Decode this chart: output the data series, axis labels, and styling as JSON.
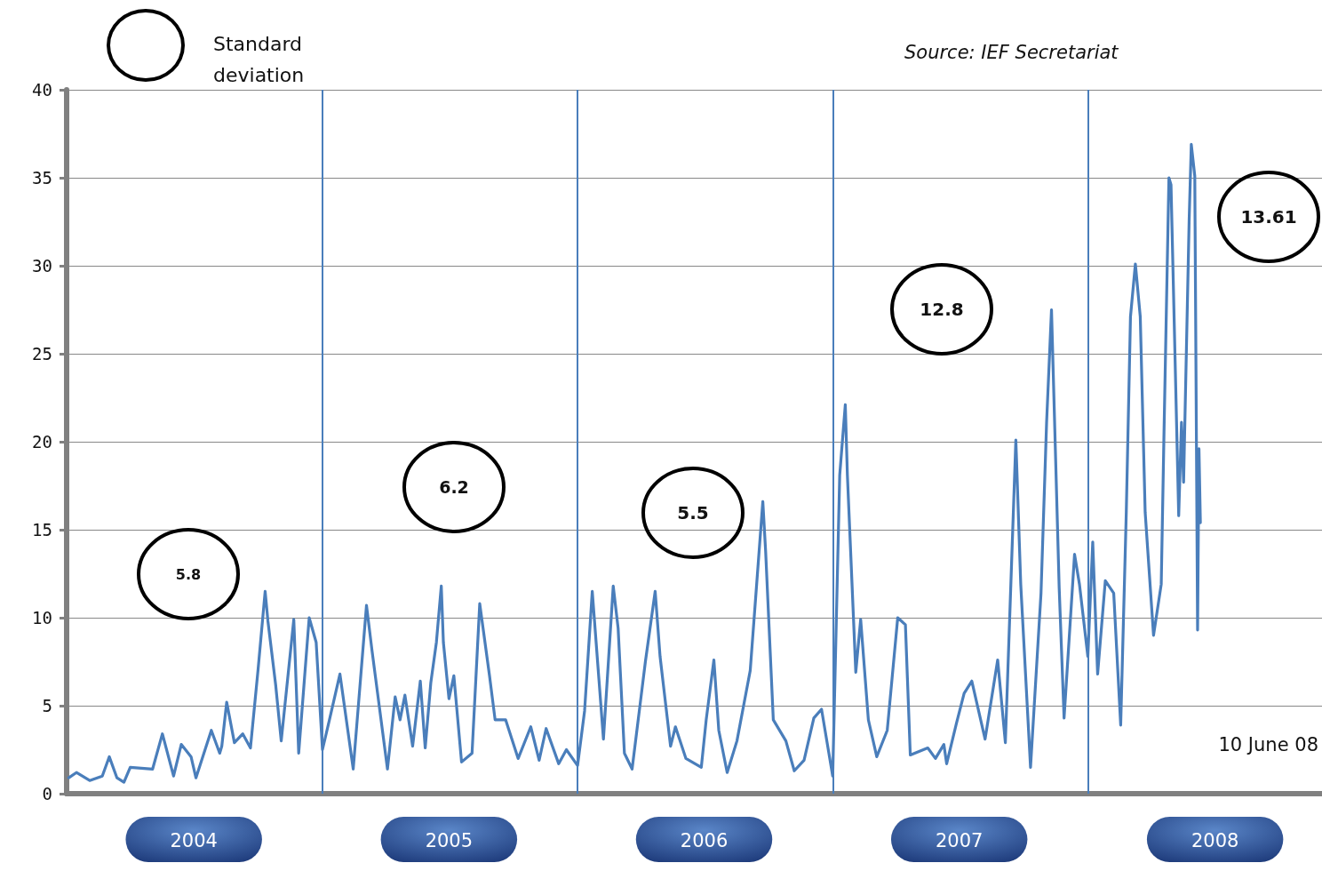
{
  "chart_data": {
    "type": "line",
    "x": [
      "2004-01-04",
      "2004-01-15",
      "2004-02-03",
      "2004-02-21",
      "2004-03-02",
      "2004-03-13",
      "2004-03-23",
      "2004-04-01",
      "2004-05-03",
      "2004-05-17",
      "2004-06-02",
      "2004-06-13",
      "2004-06-27",
      "2004-07-04",
      "2004-07-26",
      "2004-08-07",
      "2004-08-10",
      "2004-08-17",
      "2004-08-28",
      "2004-09-09",
      "2004-09-20",
      "2004-10-01",
      "2004-10-11",
      "2004-10-15",
      "2004-10-26",
      "2004-11-03",
      "2004-11-21",
      "2004-11-28",
      "2004-12-13",
      "2004-12-23",
      "2005-01-01",
      "2005-01-11",
      "2005-01-26",
      "2005-02-14",
      "2005-03-05",
      "2005-03-13",
      "2005-04-04",
      "2005-04-15",
      "2005-04-22",
      "2005-04-29",
      "2005-05-10",
      "2005-05-21",
      "2005-05-28",
      "2005-06-05",
      "2005-06-13",
      "2005-06-20",
      "2005-06-23",
      "2005-07-01",
      "2005-07-08",
      "2005-07-19",
      "2005-08-03",
      "2005-08-14",
      "2005-08-28",
      "2005-09-05",
      "2005-09-20",
      "2005-10-08",
      "2005-10-26",
      "2005-11-07",
      "2005-11-17",
      "2005-12-05",
      "2005-12-16",
      "2006-01-01",
      "2006-01-11",
      "2006-01-22",
      "2006-02-07",
      "2006-02-21",
      "2006-02-28",
      "2006-03-09",
      "2006-03-20",
      "2006-04-08",
      "2006-04-22",
      "2006-04-29",
      "2006-05-14",
      "2006-05-21",
      "2006-06-05",
      "2006-06-27",
      "2006-07-04",
      "2006-07-15",
      "2006-07-22",
      "2006-08-03",
      "2006-08-17",
      "2006-09-05",
      "2006-09-23",
      "2006-09-27",
      "2006-10-08",
      "2006-10-26",
      "2006-11-07",
      "2006-11-21",
      "2006-12-05",
      "2006-12-16",
      "2007-01-01",
      "2007-01-11",
      "2007-01-19",
      "2007-01-22",
      "2007-02-03",
      "2007-02-10",
      "2007-02-21",
      "2007-03-05",
      "2007-03-20",
      "2007-04-04",
      "2007-04-15",
      "2007-04-22",
      "2007-05-17",
      "2007-05-28",
      "2007-06-09",
      "2007-06-13",
      "2007-06-27",
      "2007-07-08",
      "2007-07-19",
      "2007-08-07",
      "2007-08-25",
      "2007-09-05",
      "2007-09-20",
      "2007-09-27",
      "2007-10-11",
      "2007-10-26",
      "2007-11-03",
      "2007-11-10",
      "2007-11-21",
      "2007-11-28",
      "2007-12-13",
      "2007-12-20",
      "2008-01-01",
      "2008-01-08",
      "2008-01-15",
      "2008-01-26",
      "2008-02-07",
      "2008-02-17",
      "2008-02-25",
      "2008-03-02",
      "2008-03-09",
      "2008-03-16",
      "2008-03-23",
      "2008-04-04",
      "2008-04-15",
      "2008-04-19",
      "2008-04-26",
      "2008-04-29",
      "2008-05-10",
      "2008-05-14",
      "2008-05-17",
      "2008-05-25",
      "2008-05-28",
      "2008-06-02",
      "2008-06-06",
      "2008-06-08",
      "2008-06-10"
    ],
    "series": [
      {
        "color": "#4a7ebb",
        "values": [
          0.9,
          1.2,
          0.75,
          1.0,
          2.1,
          0.9,
          0.65,
          1.5,
          1.4,
          3.4,
          1.0,
          2.8,
          2.1,
          0.9,
          3.6,
          2.3,
          2.7,
          5.2,
          2.9,
          3.4,
          2.6,
          7.1,
          11.5,
          9.8,
          6.2,
          3.0,
          9.9,
          2.3,
          10.0,
          8.6,
          2.5,
          4.2,
          6.8,
          1.4,
          10.7,
          8.1,
          1.4,
          5.5,
          4.2,
          5.6,
          2.7,
          6.4,
          2.6,
          6.3,
          8.6,
          11.8,
          8.6,
          5.4,
          6.7,
          1.8,
          2.3,
          10.8,
          6.7,
          4.2,
          4.2,
          2.0,
          3.8,
          1.9,
          3.7,
          1.7,
          2.5,
          1.6,
          4.7,
          11.5,
          3.1,
          11.8,
          9.4,
          2.3,
          1.4,
          7.5,
          11.5,
          7.8,
          2.7,
          3.8,
          2.0,
          1.5,
          4.2,
          7.6,
          3.6,
          1.2,
          3.0,
          7.0,
          16.6,
          13.8,
          4.2,
          3.0,
          1.3,
          1.9,
          4.3,
          4.8,
          1.0,
          18.1,
          22.1,
          18.1,
          6.9,
          9.9,
          4.2,
          2.1,
          3.6,
          10.0,
          9.6,
          2.2,
          2.6,
          2.0,
          2.8,
          1.7,
          4.0,
          5.7,
          6.4,
          3.1,
          7.6,
          2.9,
          20.1,
          11.9,
          1.5,
          11.4,
          21.1,
          27.5,
          11.7,
          4.3,
          13.6,
          11.9,
          7.8,
          14.3,
          6.8,
          12.1,
          11.4,
          3.9,
          16.0,
          27.1,
          30.1,
          27.1,
          16.0,
          9.0,
          11.9,
          20.6,
          35.0,
          34.6,
          15.8,
          21.1,
          17.7,
          32.7,
          36.9,
          35.1,
          9.3,
          19.6,
          15.4
        ]
      }
    ],
    "xlim": [
      "2004-01-01",
      "2008-12-01"
    ],
    "xticks": [
      {
        "value": "2004-07-01",
        "label": "2004"
      },
      {
        "value": "2005-07-01",
        "label": "2005"
      },
      {
        "value": "2006-07-01",
        "label": "2006"
      },
      {
        "value": "2007-07-01",
        "label": "2007"
      },
      {
        "value": "2008-07-01",
        "label": "2008"
      }
    ],
    "ylim": [
      0,
      40
    ],
    "yticks": [
      0,
      5,
      10,
      15,
      20,
      25,
      30,
      35,
      40
    ],
    "grid": "y",
    "marker": "none",
    "line_style": "solid",
    "ref_lines": [
      {
        "axis": "x",
        "value": "2005-01-01",
        "color": "#4a7ebb"
      },
      {
        "axis": "x",
        "value": "2006-01-01",
        "color": "#4a7ebb"
      },
      {
        "axis": "x",
        "value": "2007-01-01",
        "color": "#4a7ebb"
      },
      {
        "axis": "x",
        "value": "2008-01-01",
        "color": "#4a7ebb"
      }
    ],
    "annotations": [
      "Standard deviation",
      "Source: IEF Secretariat",
      "10 June 08",
      "5.8",
      "6.2",
      "5.5",
      "12.8",
      "13.61"
    ]
  }
}
